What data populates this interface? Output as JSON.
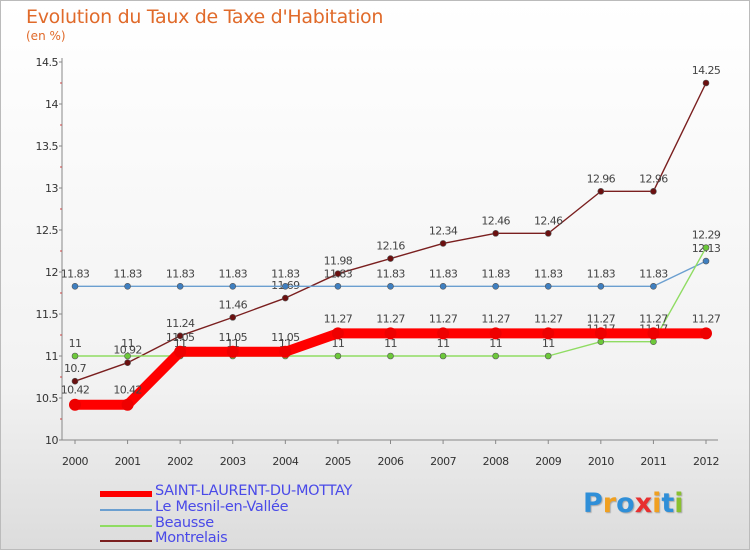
{
  "title": "Evolution du Taux de Taxe d'Habitation",
  "subtitle": "(en %)",
  "logo_text": "Proxiti",
  "chart_data": {
    "type": "line",
    "x": [
      "2000",
      "2001",
      "2002",
      "2003",
      "2004",
      "2005",
      "2006",
      "2007",
      "2008",
      "2009",
      "2010",
      "2011",
      "2012"
    ],
    "ylim": [
      10,
      14.5
    ],
    "yticks": [
      "10",
      "10.5",
      "11",
      "11.5",
      "12",
      "12.5",
      "13",
      "13.5",
      "14",
      "14.5"
    ],
    "ytick_values": [
      10,
      10.5,
      11,
      11.5,
      12,
      12.5,
      13,
      13.5,
      14,
      14.5
    ],
    "grid": false,
    "legend_position": "bottom-left",
    "series": [
      {
        "name": "Montrelais",
        "color": "#7a1f1f",
        "marker": "#6b1010",
        "values": [
          10.7,
          10.92,
          11.24,
          11.46,
          11.69,
          11.98,
          12.16,
          12.34,
          12.46,
          12.46,
          12.96,
          12.96,
          14.25
        ],
        "labels": [
          "10.7",
          "10.92",
          "11.24",
          "11.46",
          "11.69",
          "11.98",
          "12.16",
          "12.34",
          "12.46",
          "12.46",
          "12.96",
          "12.96",
          "14.25"
        ]
      },
      {
        "name": "Le Mesnil-en-Vallée",
        "color": "#6b9fd0",
        "marker": "#3f7fc0",
        "values": [
          11.83,
          11.83,
          11.83,
          11.83,
          11.83,
          11.83,
          11.83,
          11.83,
          11.83,
          11.83,
          11.83,
          11.83,
          12.13
        ],
        "labels": [
          "11.83",
          "11.83",
          "11.83",
          "11.83",
          "11.83",
          "11.83",
          "11.83",
          "11.83",
          "11.83",
          "11.83",
          "11.83",
          "11.83",
          "12.13"
        ]
      },
      {
        "name": "Beausse",
        "color": "#8fdc62",
        "marker": "#6cc83a",
        "values": [
          11,
          11,
          11,
          11,
          11,
          11,
          11,
          11,
          11,
          11,
          11.17,
          11.17,
          12.29
        ],
        "labels": [
          "11",
          "11",
          "11",
          "11",
          "11",
          "11",
          "11",
          "11",
          "11",
          "11",
          "11.17",
          "11.17",
          "12.29"
        ]
      },
      {
        "name": "SAINT-LAURENT-DU-MOTTAY",
        "color": "#ff0000",
        "marker": "#ee0000",
        "values": [
          10.42,
          10.42,
          11.05,
          11.05,
          11.05,
          11.27,
          11.27,
          11.27,
          11.27,
          11.27,
          11.27,
          11.27,
          11.27
        ],
        "labels": [
          "10.42",
          "10.42",
          "11.05",
          "11.05",
          "11.05",
          "11.27",
          "11.27",
          "11.27",
          "11.27",
          "11.27",
          "11.27",
          "11.27",
          "11.27"
        ]
      }
    ],
    "legend": [
      "SAINT-LAURENT-DU-MOTTAY",
      "Le Mesnil-en-Vallée",
      "Beausse",
      "Montrelais"
    ]
  }
}
